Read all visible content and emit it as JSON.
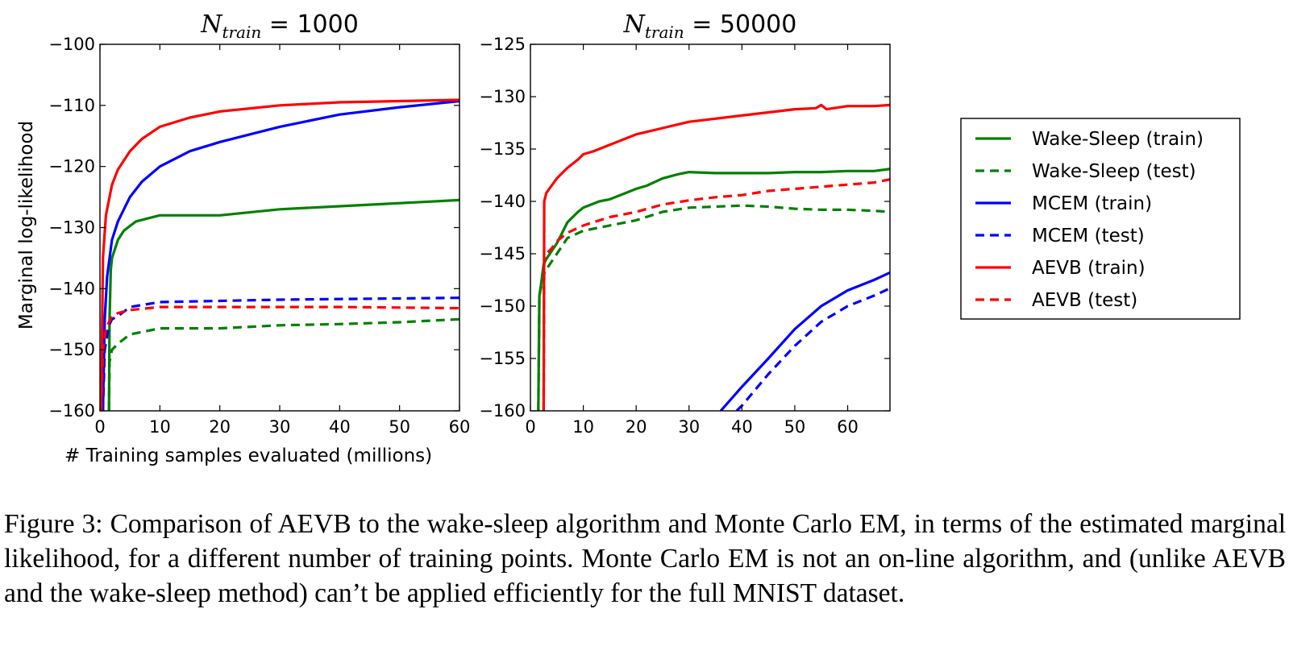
{
  "colors": {
    "wake_sleep": "#008000",
    "mcem": "#0000ff",
    "aevb": "#ff0000",
    "axis": "#000000"
  },
  "legend": [
    {
      "label": "Wake-Sleep (train)",
      "color": "#008000",
      "dashed": false
    },
    {
      "label": "Wake-Sleep (test)",
      "color": "#008000",
      "dashed": true
    },
    {
      "label": "MCEM (train)",
      "color": "#0000ff",
      "dashed": false
    },
    {
      "label": "MCEM (test)",
      "color": "#0000ff",
      "dashed": true
    },
    {
      "label": "AEVB (train)",
      "color": "#ff0000",
      "dashed": false
    },
    {
      "label": "AEVB (test)",
      "color": "#ff0000",
      "dashed": true
    }
  ],
  "chart_data": [
    {
      "type": "line",
      "title": {
        "prefix": "N",
        "subscript": "train",
        "suffix": " = 1000"
      },
      "xlabel": "# Training samples evaluated (millions)",
      "ylabel": "Marginal log-likelihood",
      "xlim": [
        0,
        60
      ],
      "ylim": [
        -160,
        -100
      ],
      "xticks": [
        0,
        10,
        20,
        30,
        40,
        50,
        60
      ],
      "yticks": [
        -100,
        -110,
        -120,
        -130,
        -140,
        -150,
        -160
      ],
      "series": [
        {
          "name": "Wake-Sleep (train)",
          "x": [
            1.5,
            1.6,
            1.8,
            2,
            3,
            4,
            6,
            8,
            10,
            15,
            20,
            30,
            40,
            50,
            60
          ],
          "y": [
            -160,
            -145,
            -137,
            -135,
            -132,
            -130.5,
            -129,
            -128.5,
            -128,
            -128,
            -128,
            -127,
            -126.5,
            -126,
            -125.5
          ]
        },
        {
          "name": "Wake-Sleep (test)",
          "x": [
            1.5,
            1.6,
            2,
            3,
            5,
            10,
            20,
            30,
            40,
            50,
            60
          ],
          "y": [
            -160,
            -152,
            -150,
            -149,
            -147.5,
            -146.5,
            -146.5,
            -146,
            -145.8,
            -145.5,
            -145
          ]
        },
        {
          "name": "MCEM (train)",
          "x": [
            0.5,
            0.8,
            1.2,
            2,
            3,
            4,
            5,
            7,
            10,
            15,
            20,
            30,
            40,
            50,
            60
          ],
          "y": [
            -160,
            -145,
            -138,
            -132,
            -129,
            -127,
            -125,
            -122.5,
            -120,
            -117.5,
            -116,
            -113.5,
            -111.5,
            -110.3,
            -109.3
          ]
        },
        {
          "name": "MCEM (test)",
          "x": [
            0.5,
            0.8,
            1.5,
            2,
            3,
            5,
            10,
            20,
            30,
            40,
            50,
            60
          ],
          "y": [
            -160,
            -150,
            -146,
            -145,
            -144.5,
            -143,
            -142.2,
            -142,
            -141.8,
            -141.7,
            -141.6,
            -141.5
          ]
        },
        {
          "name": "AEVB (train)",
          "x": [
            0.2,
            0.5,
            1,
            2,
            3,
            4,
            5,
            7,
            10,
            15,
            20,
            30,
            40,
            50,
            60
          ],
          "y": [
            -160,
            -135,
            -128,
            -123,
            -120.5,
            -119,
            -117.5,
            -115.5,
            -113.5,
            -112,
            -111,
            -110,
            -109.5,
            -109.3,
            -109.1
          ]
        },
        {
          "name": "AEVB (test)",
          "x": [
            0.2,
            0.5,
            1,
            2,
            3,
            5,
            10,
            20,
            30,
            40,
            50,
            60
          ],
          "y": [
            -160,
            -150,
            -146.5,
            -144.5,
            -144,
            -143.5,
            -143,
            -143,
            -143,
            -143,
            -143.1,
            -143.2
          ]
        }
      ]
    },
    {
      "type": "line",
      "title": {
        "prefix": "N",
        "subscript": "train",
        "suffix": " = 50000"
      },
      "xlabel": "",
      "ylabel": "",
      "xlim": [
        0,
        68
      ],
      "ylim": [
        -160,
        -125
      ],
      "xticks": [
        0,
        10,
        20,
        30,
        40,
        50,
        60
      ],
      "yticks": [
        -125,
        -130,
        -135,
        -140,
        -145,
        -150,
        -155,
        -160
      ],
      "series": [
        {
          "name": "Wake-Sleep (train)",
          "x": [
            1.5,
            1.7,
            2,
            2.5,
            3,
            5,
            7,
            9,
            10,
            13,
            15,
            18,
            20,
            22,
            25,
            28,
            30,
            35,
            40,
            45,
            50,
            55,
            60,
            65,
            68
          ],
          "y": [
            -160,
            -149,
            -148,
            -146,
            -145.5,
            -144,
            -142,
            -141,
            -140.6,
            -140,
            -139.8,
            -139.2,
            -138.8,
            -138.5,
            -137.8,
            -137.4,
            -137.2,
            -137.3,
            -137.3,
            -137.3,
            -137.2,
            -137.2,
            -137.1,
            -137.1,
            -136.9
          ]
        },
        {
          "name": "Wake-Sleep (test)",
          "x": [
            1.5,
            1.7,
            2.5,
            3,
            5,
            7,
            10,
            15,
            20,
            25,
            30,
            35,
            40,
            45,
            50,
            55,
            60,
            65,
            68
          ],
          "y": [
            -160,
            -149,
            -147,
            -146.5,
            -145,
            -143.5,
            -142.8,
            -142.3,
            -141.8,
            -141,
            -140.6,
            -140.5,
            -140.4,
            -140.5,
            -140.7,
            -140.8,
            -140.8,
            -140.9,
            -141
          ]
        },
        {
          "name": "MCEM (train)",
          "x": [
            36,
            40,
            45,
            50,
            55,
            60,
            65,
            68
          ],
          "y": [
            -160,
            -157.7,
            -155,
            -152.2,
            -150,
            -148.5,
            -147.5,
            -146.8
          ]
        },
        {
          "name": "MCEM (test)",
          "x": [
            39,
            40,
            45,
            50,
            55,
            60,
            65,
            68
          ],
          "y": [
            -160,
            -159.5,
            -156.5,
            -153.8,
            -151.5,
            -150,
            -149,
            -148.3
          ]
        },
        {
          "name": "AEVB (train)",
          "x": [
            2.5,
            2.6,
            3,
            4,
            5,
            7,
            9,
            10,
            12,
            15,
            18,
            20,
            25,
            30,
            35,
            40,
            45,
            50,
            54,
            55,
            56,
            60,
            65,
            68
          ],
          "y": [
            -160,
            -140,
            -139.2,
            -138.5,
            -137.8,
            -136.8,
            -136,
            -135.5,
            -135.2,
            -134.6,
            -134,
            -133.6,
            -133,
            -132.4,
            -132.1,
            -131.8,
            -131.5,
            -131.2,
            -131.1,
            -130.8,
            -131.2,
            -130.9,
            -130.9,
            -130.8
          ]
        },
        {
          "name": "AEVB (test)",
          "x": [
            2.5,
            2.6,
            3,
            4,
            5,
            7,
            10,
            15,
            20,
            25,
            30,
            35,
            40,
            45,
            50,
            55,
            60,
            65,
            68
          ],
          "y": [
            -160,
            -145.5,
            -145,
            -144.5,
            -143.8,
            -143,
            -142.3,
            -141.5,
            -141,
            -140.3,
            -139.9,
            -139.6,
            -139.4,
            -139,
            -138.8,
            -138.6,
            -138.4,
            -138.2,
            -137.9
          ]
        }
      ]
    }
  ],
  "caption": {
    "text": "Figure 3: Comparison of AEVB to the wake-sleep algorithm and Monte Carlo EM, in terms of the estimated marginal likelihood, for a different number of training points. Monte Carlo EM is not an on-line algorithm, and (unlike AEVB and the wake-sleep method) can’t be applied efficiently for the full MNIST dataset."
  }
}
